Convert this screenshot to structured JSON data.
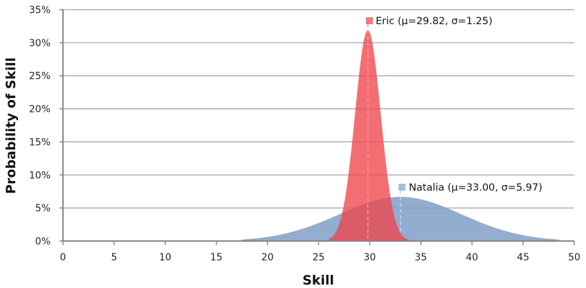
{
  "chart_data": {
    "type": "area",
    "title": "",
    "xlabel": "Skill",
    "ylabel": "Probability of Skill",
    "xlim": [
      0,
      50
    ],
    "ylim": [
      0,
      0.35
    ],
    "x_ticks": [
      0,
      5,
      10,
      15,
      20,
      25,
      30,
      35,
      40,
      45,
      50
    ],
    "x_tick_labels": [
      "0",
      "5",
      "10",
      "15",
      "20",
      "25",
      "30",
      "35",
      "40",
      "45",
      "50"
    ],
    "y_ticks": [
      0,
      0.05,
      0.1,
      0.15,
      0.2,
      0.25,
      0.3,
      0.35
    ],
    "y_tick_labels": [
      "0%",
      "5%",
      "10%",
      "15%",
      "20%",
      "25%",
      "30%",
      "35%"
    ],
    "grid": {
      "horizontal": true,
      "vertical": false
    },
    "legend": "inline annotations",
    "series": [
      {
        "name": "Eric",
        "label": "Eric (μ=29.82, σ=1.25)",
        "distribution": "normal",
        "mu": 29.82,
        "sigma": 1.25,
        "x_range": [
          26.0,
          34.0
        ],
        "peak": 0.319,
        "color": "#f0555a",
        "mean_marker": "dashed vertical line at mu"
      },
      {
        "name": "Natalia",
        "label": "Natalia (μ=33.00, σ=5.97)",
        "distribution": "normal",
        "mu": 33.0,
        "sigma": 5.97,
        "x_range": [
          17.5,
          48.5
        ],
        "peak": 0.0668,
        "color": "#7f9fc8",
        "mean_marker": "dashed vertical line at mu"
      }
    ]
  },
  "axes": {
    "x_title": "Skill",
    "y_title": "Probability of Skill",
    "x_tick_labels": [
      "0",
      "5",
      "10",
      "15",
      "20",
      "25",
      "30",
      "35",
      "40",
      "45",
      "50"
    ],
    "y_tick_labels": [
      "0%",
      "5%",
      "10%",
      "15%",
      "20%",
      "25%",
      "30%",
      "35%"
    ]
  },
  "annotations": {
    "eric": "Eric (μ=29.82, σ=1.25)",
    "natalia": "Natalia (μ=33.00, σ=5.97)"
  }
}
